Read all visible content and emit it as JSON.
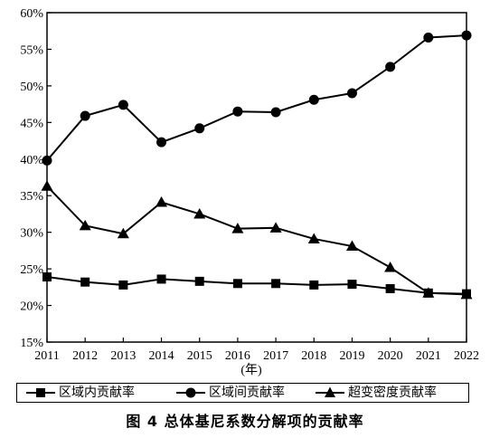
{
  "chart_data": {
    "type": "line",
    "title": "",
    "xlabel": "(年)",
    "ylabel": "",
    "x": [
      2011,
      2012,
      2013,
      2014,
      2015,
      2016,
      2017,
      2018,
      2019,
      2020,
      2021,
      2022
    ],
    "ylim": [
      15,
      60
    ],
    "yticks": [
      "15%",
      "20%",
      "25%",
      "30%",
      "35%",
      "40%",
      "45%",
      "50%",
      "55%",
      "60%"
    ],
    "series": [
      {
        "name": "区域内贡献率",
        "marker": "square",
        "values": [
          23.9,
          23.2,
          22.8,
          23.6,
          23.3,
          23.0,
          23.0,
          22.8,
          22.9,
          22.3,
          21.7,
          21.6
        ]
      },
      {
        "name": "区域间贡献率",
        "marker": "circle",
        "values": [
          39.8,
          45.9,
          47.4,
          42.3,
          44.2,
          46.5,
          46.4,
          48.1,
          49.0,
          52.6,
          56.6,
          56.9
        ]
      },
      {
        "name": "超变密度贡献率",
        "marker": "triangle",
        "values": [
          36.3,
          30.9,
          29.8,
          34.1,
          32.5,
          30.5,
          30.6,
          29.1,
          28.1,
          25.2,
          21.7,
          21.5
        ]
      }
    ],
    "legend_position": "bottom",
    "grid": false
  },
  "caption": "图 4    总体基尼系数分解项的贡献率"
}
